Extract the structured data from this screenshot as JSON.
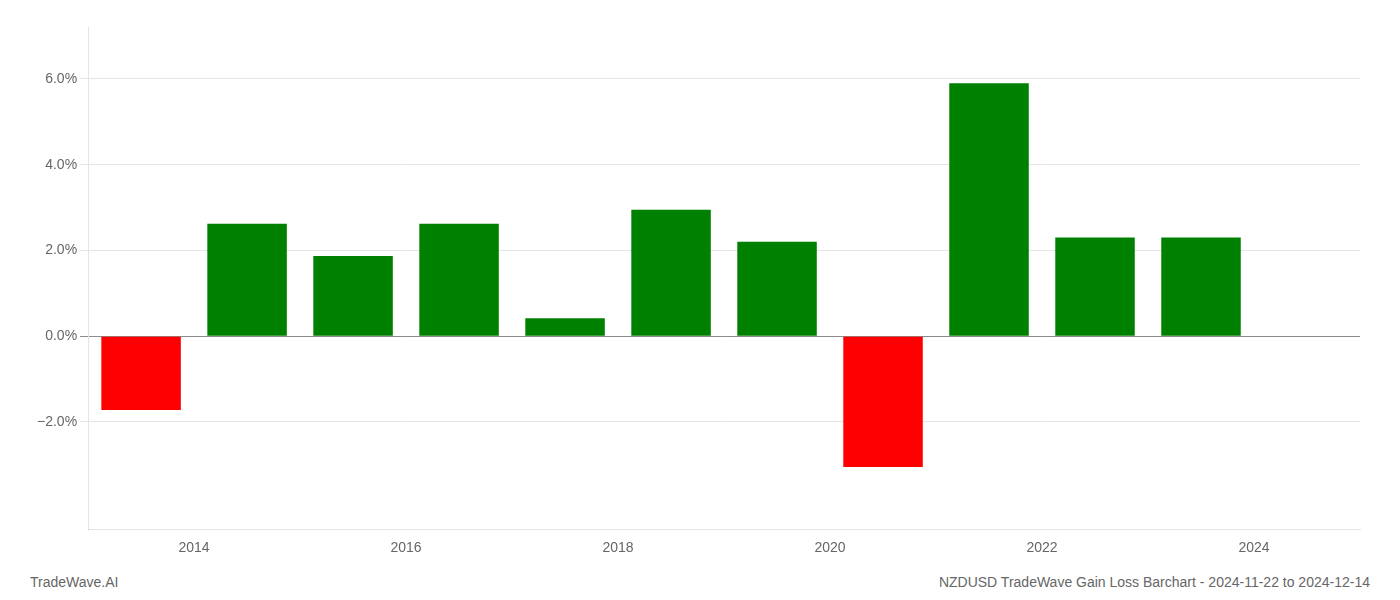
{
  "chart_data": {
    "type": "bar",
    "x": [
      2013.5,
      2014.5,
      2015.5,
      2016.5,
      2017.5,
      2018.5,
      2019.5,
      2020.5,
      2021.5,
      2022.5,
      2023.5
    ],
    "values": [
      -1.72,
      2.62,
      1.87,
      2.62,
      0.42,
      2.95,
      2.2,
      -3.05,
      5.9,
      2.3,
      2.3
    ],
    "colors": [
      "#ff0000",
      "#008000",
      "#008000",
      "#008000",
      "#008000",
      "#008000",
      "#008000",
      "#ff0000",
      "#008000",
      "#008000",
      "#008000"
    ],
    "xlim": [
      2013.0,
      2025.0
    ],
    "xticks": [
      2014,
      2016,
      2018,
      2020,
      2022,
      2024
    ],
    "ylim": [
      -4.5,
      7.2
    ],
    "yticks": [
      {
        "value": -2.0,
        "label": "−2.0%"
      },
      {
        "value": 0.0,
        "label": "0.0%"
      },
      {
        "value": 2.0,
        "label": "2.0%"
      },
      {
        "value": 4.0,
        "label": "4.0%"
      },
      {
        "value": 6.0,
        "label": "6.0%"
      }
    ],
    "grid": "y",
    "annotations": [
      "TradeWave.AI",
      "NZDUSD TradeWave Gain Loss Barchart - 2024-11-22 to 2024-12-14"
    ]
  }
}
